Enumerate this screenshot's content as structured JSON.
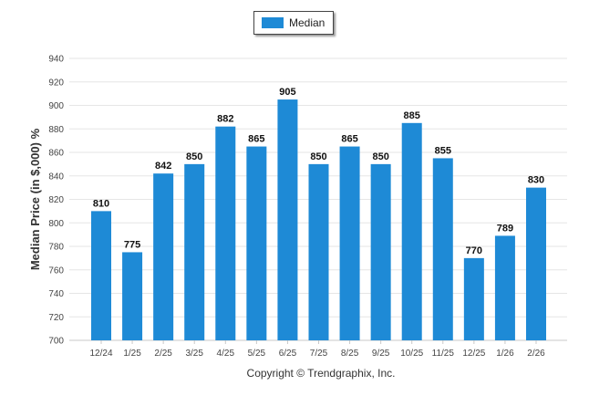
{
  "legend": {
    "label": "Median"
  },
  "copyright": "Copyright © Trendgraphix, Inc.",
  "colors": {
    "bar": "#1e8ad6",
    "grid": "#e6e6e6"
  },
  "chart_data": {
    "type": "bar",
    "categories": [
      "12/24",
      "1/25",
      "2/25",
      "3/25",
      "4/25",
      "5/25",
      "6/25",
      "7/25",
      "8/25",
      "9/25",
      "10/25",
      "11/25",
      "12/25",
      "1/26",
      "2/26"
    ],
    "series": [
      {
        "name": "Median",
        "values": [
          810,
          775,
          842,
          850,
          882,
          865,
          905,
          850,
          865,
          850,
          885,
          855,
          770,
          789,
          830
        ]
      }
    ],
    "ylabel": "Median Price (in $,000) %",
    "xlabel": "",
    "ylim": [
      700,
      940
    ],
    "yticks": [
      700,
      720,
      740,
      760,
      780,
      800,
      820,
      840,
      860,
      880,
      900,
      920,
      940
    ],
    "grid": true,
    "legend_position": "top-center"
  }
}
